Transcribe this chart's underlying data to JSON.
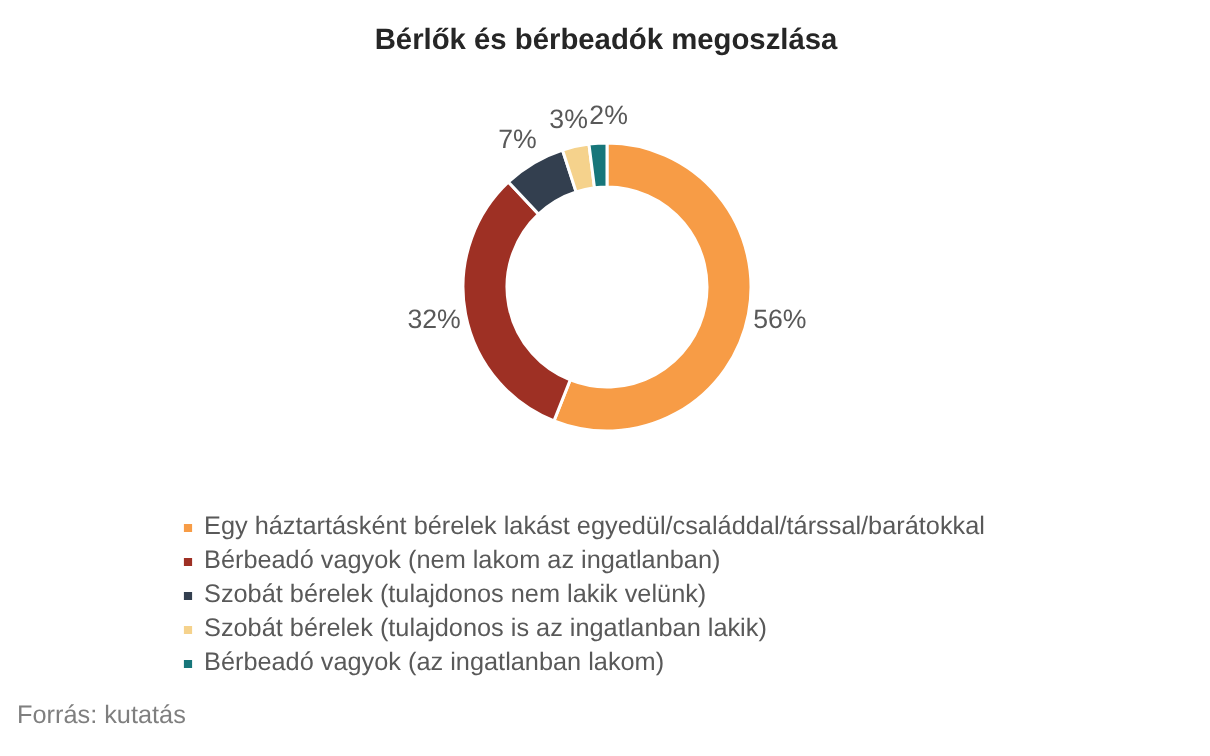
{
  "chart_data": {
    "type": "donut",
    "title": "Bérlők és bérbeadók megoszlása",
    "categories": [
      "Egy háztartásként bérelek lakást egyedül/családdal/társsal/barátokkal",
      "Bérbeadó vagyok (nem lakom az ingatlanban)",
      "Szobát bérelek (tulajdonos nem lakik velünk)",
      "Szobát bérelek (tulajdonos is az ingatlanban lakik)",
      "Bérbeadó vagyok (az ingatlanban lakom)"
    ],
    "values": [
      56,
      32,
      7,
      3,
      2
    ],
    "colors": [
      "#f79c46",
      "#9e3024",
      "#333f4f",
      "#f5d28c",
      "#17767a"
    ],
    "value_labels": [
      "56%",
      "32%",
      "7%",
      "3%",
      "2%"
    ],
    "legend": "bottom",
    "annotations": [
      "Forrás: kutatás"
    ]
  }
}
